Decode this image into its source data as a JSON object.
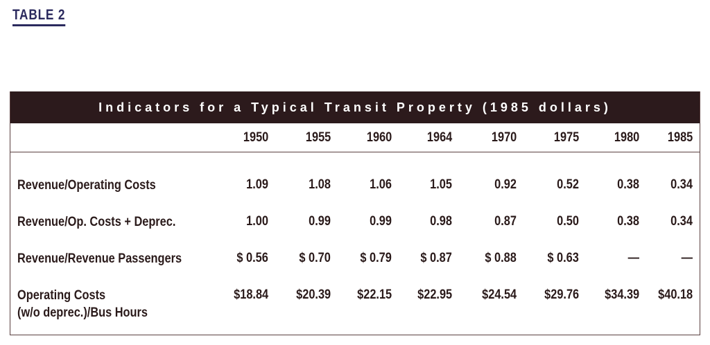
{
  "table_label": "TABLE 2",
  "title": "Indicators for a Typical Transit Property (1985 dollars)",
  "years": [
    "1950",
    "1955",
    "1960",
    "1964",
    "1970",
    "1975",
    "1980",
    "1985"
  ],
  "rows": [
    {
      "label": [
        "Revenue/Operating Costs"
      ],
      "values": [
        "1.09",
        "1.08",
        "1.06",
        "1.05",
        "0.92",
        "0.52",
        "0.38",
        "0.34"
      ]
    },
    {
      "label": [
        "Revenue/Op. Costs + Deprec."
      ],
      "values": [
        "1.00",
        "0.99",
        "0.99",
        "0.98",
        "0.87",
        "0.50",
        "0.38",
        "0.34"
      ]
    },
    {
      "label": [
        "Revenue/Revenue Passengers"
      ],
      "values": [
        "$ 0.56",
        "$ 0.70",
        "$ 0.79",
        "$ 0.87",
        "$ 0.88",
        "$ 0.63",
        "—",
        "—"
      ]
    },
    {
      "label": [
        "Operating Costs",
        "(w/o deprec.)/Bus Hours"
      ],
      "values": [
        "$18.84",
        "$20.39",
        "$22.15",
        "$22.95",
        "$24.54",
        "$29.76",
        "$34.39",
        "$40.18"
      ]
    }
  ]
}
